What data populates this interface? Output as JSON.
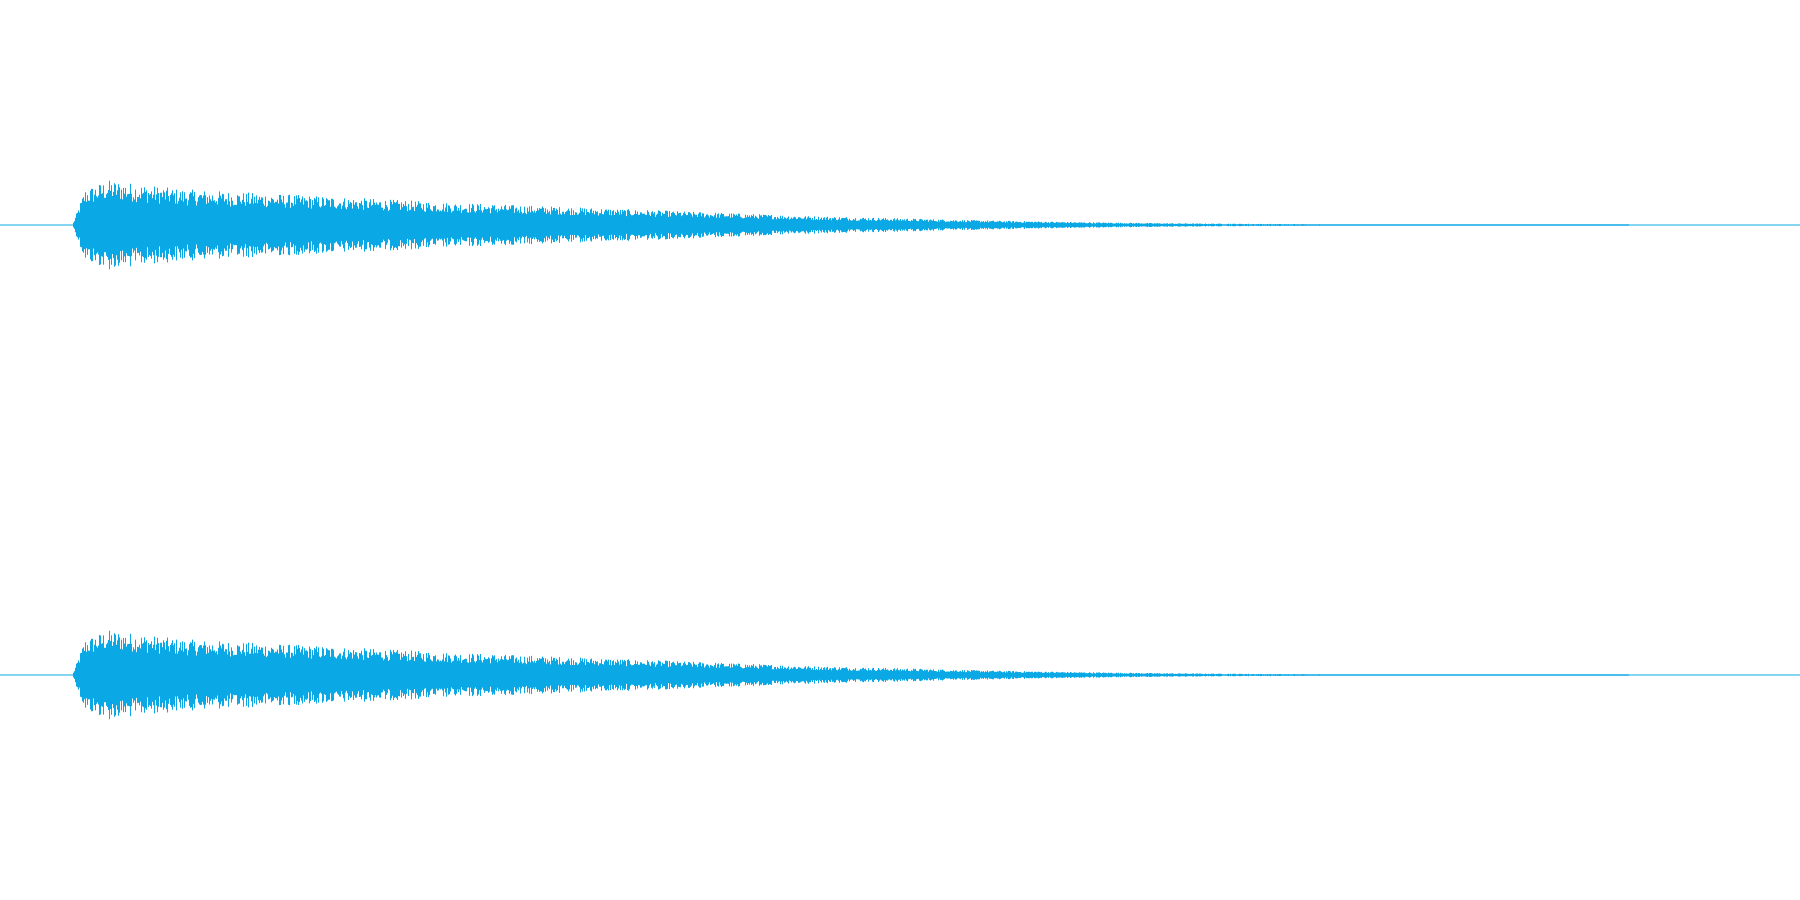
{
  "chart_data": {
    "type": "area",
    "chart_kind": "audio-waveform",
    "title": "",
    "xlabel": "",
    "ylabel": "",
    "grid": false,
    "legend": "none",
    "ylim": [
      -1,
      1
    ],
    "series": [
      {
        "channel": 1,
        "color": "#0aa9e6",
        "x": [
          0.0,
          0.04,
          0.047,
          0.06,
          0.1,
          0.15,
          0.2,
          0.25,
          0.3,
          0.35,
          0.4,
          0.45,
          0.5,
          0.55,
          0.6,
          0.65,
          0.7,
          0.75,
          0.8,
          0.85,
          0.905,
          1.0
        ],
        "peak": [
          0.0,
          0.0,
          0.16,
          0.2,
          0.16,
          0.14,
          0.12,
          0.1,
          0.085,
          0.07,
          0.055,
          0.04,
          0.03,
          0.02,
          0.013,
          0.008,
          0.005,
          0.0035,
          0.0025,
          0.0015,
          0.0,
          0.0
        ]
      },
      {
        "channel": 2,
        "color": "#0aa9e6",
        "x": [
          0.0,
          0.04,
          0.047,
          0.06,
          0.1,
          0.15,
          0.2,
          0.25,
          0.3,
          0.35,
          0.4,
          0.45,
          0.5,
          0.55,
          0.6,
          0.65,
          0.7,
          0.75,
          0.8,
          0.85,
          0.905,
          1.0
        ],
        "peak": [
          0.0,
          0.0,
          0.16,
          0.2,
          0.16,
          0.14,
          0.12,
          0.1,
          0.085,
          0.07,
          0.055,
          0.04,
          0.03,
          0.02,
          0.013,
          0.008,
          0.005,
          0.0035,
          0.0025,
          0.0015,
          0.0,
          0.0
        ]
      }
    ]
  }
}
